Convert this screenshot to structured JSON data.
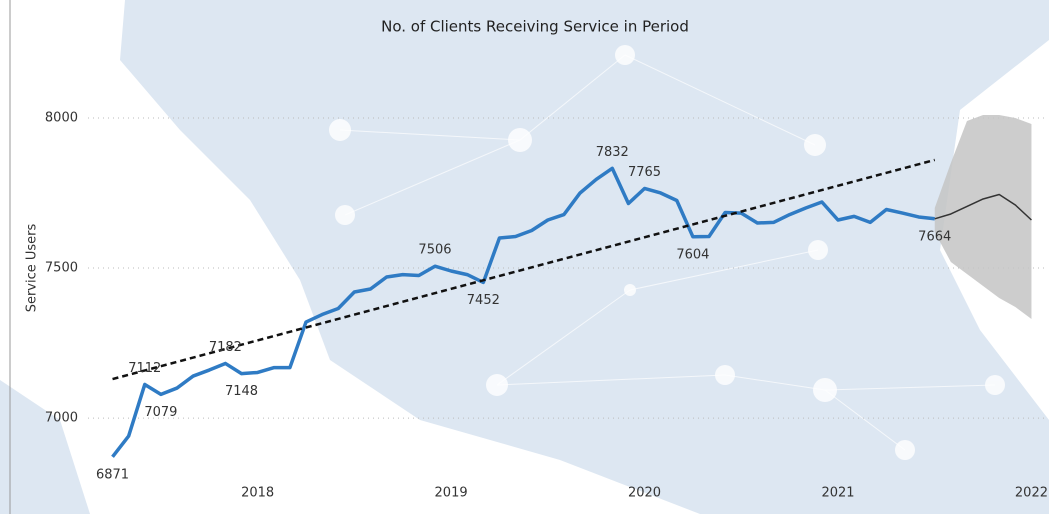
{
  "chart_data": {
    "type": "line",
    "title": "No. of Clients Receiving Service in Period",
    "y_label": "Service Users",
    "x": [
      2017.25,
      2017.3333,
      2017.4167,
      2017.5,
      2017.5833,
      2017.6667,
      2017.75,
      2017.8333,
      2017.9167,
      2018,
      2018.0833,
      2018.1667,
      2018.25,
      2018.3333,
      2018.4167,
      2018.5,
      2018.5833,
      2018.6667,
      2018.75,
      2018.8333,
      2018.9167,
      2019,
      2019.0833,
      2019.1667,
      2019.25,
      2019.3333,
      2019.4167,
      2019.5,
      2019.5833,
      2019.6667,
      2019.75,
      2019.8333,
      2019.9167,
      2020,
      2020.0833,
      2020.1667,
      2020.25,
      2020.3333,
      2020.4167,
      2020.5,
      2020.5833,
      2020.6667,
      2020.75,
      2020.8333,
      2020.9167,
      2021,
      2021.0833,
      2021.1667,
      2021.25,
      2021.3333,
      2021.4167,
      2021.5,
      2021.5833,
      2021.6667,
      2021.75,
      2021.8333,
      2021.9167,
      2022
    ],
    "series": [
      {
        "color": "#2f7bc4",
        "values": [
          6871,
          6940,
          7112,
          7079,
          7100,
          7140,
          7160,
          7182,
          7148,
          7152,
          7168,
          7168,
          7320,
          7345,
          7365,
          7420,
          7430,
          7470,
          7478,
          7475,
          7506,
          7490,
          7478,
          7452,
          7600,
          7605,
          7625,
          7660,
          7678,
          7750,
          7795,
          7832,
          7715,
          7765,
          7750,
          7725,
          7604,
          7605,
          7685,
          7683,
          7650,
          7652,
          7678,
          7700,
          7720,
          7660,
          7672,
          7652,
          7695,
          7683,
          7670,
          7664,
          null,
          null,
          null,
          null,
          null,
          null
        ],
        "value_labels": [
          "6871",
          null,
          "7112",
          "7079",
          null,
          null,
          null,
          "7182",
          "7148",
          null,
          null,
          null,
          null,
          null,
          null,
          null,
          null,
          null,
          null,
          null,
          "7506",
          null,
          null,
          "7452",
          null,
          null,
          null,
          null,
          null,
          null,
          null,
          "7832",
          null,
          "7765",
          null,
          null,
          "7604",
          null,
          null,
          null,
          null,
          null,
          null,
          null,
          null,
          null,
          null,
          null,
          null,
          null,
          null,
          "7664",
          null,
          null,
          null,
          null,
          null,
          null
        ]
      },
      {
        "color": "#333333",
        "values": [
          null,
          null,
          null,
          null,
          null,
          null,
          null,
          null,
          null,
          null,
          null,
          null,
          null,
          null,
          null,
          null,
          null,
          null,
          null,
          null,
          null,
          null,
          null,
          null,
          null,
          null,
          null,
          null,
          null,
          null,
          null,
          null,
          null,
          null,
          null,
          null,
          null,
          null,
          null,
          null,
          null,
          null,
          null,
          null,
          null,
          null,
          null,
          null,
          null,
          null,
          null,
          7664,
          7680,
          7705,
          7730,
          7745,
          7710,
          7660
        ]
      }
    ],
    "forecast_band": {
      "color": "#c4c4c4",
      "upper": [
        null,
        null,
        null,
        null,
        null,
        null,
        null,
        null,
        null,
        null,
        null,
        null,
        null,
        null,
        null,
        null,
        null,
        null,
        null,
        null,
        null,
        null,
        null,
        null,
        null,
        null,
        null,
        null,
        null,
        null,
        null,
        null,
        null,
        null,
        null,
        null,
        null,
        null,
        null,
        null,
        null,
        null,
        null,
        null,
        null,
        null,
        null,
        null,
        null,
        null,
        null,
        7700,
        7850,
        7990,
        8010,
        8010,
        8000,
        7980
      ],
      "lower": [
        null,
        null,
        null,
        null,
        null,
        null,
        null,
        null,
        null,
        null,
        null,
        null,
        null,
        null,
        null,
        null,
        null,
        null,
        null,
        null,
        null,
        null,
        null,
        null,
        null,
        null,
        null,
        null,
        null,
        null,
        null,
        null,
        null,
        null,
        null,
        null,
        null,
        null,
        null,
        null,
        null,
        null,
        null,
        null,
        null,
        null,
        null,
        null,
        null,
        null,
        null,
        7620,
        7520,
        7480,
        7440,
        7400,
        7370,
        7330
      ]
    },
    "trend": {
      "color": "#111111",
      "x": [
        2017.25,
        2021.5
      ],
      "values": [
        7130,
        7860
      ]
    },
    "xlim": [
      2016.72,
      2022.07
    ],
    "xticks": [
      2018,
      2019,
      2020,
      2021,
      2022
    ],
    "ylim": [
      6777,
      8343
    ],
    "yticks": [
      7000,
      7500,
      8000
    ],
    "grid": true
  }
}
